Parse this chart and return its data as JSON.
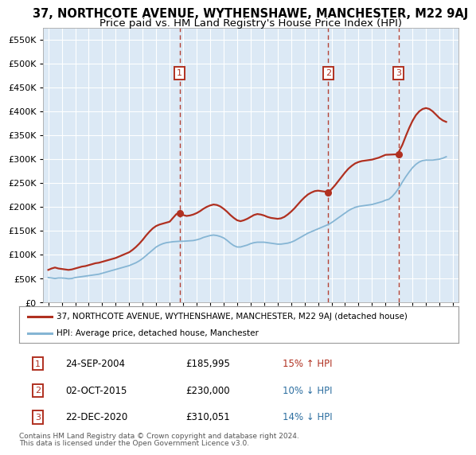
{
  "title": "37, NORTHCOTE AVENUE, WYTHENSHAWE, MANCHESTER, M22 9AJ",
  "subtitle": "Price paid vs. HM Land Registry's House Price Index (HPI)",
  "ylim": [
    0,
    575000
  ],
  "yticks": [
    0,
    50000,
    100000,
    150000,
    200000,
    250000,
    300000,
    350000,
    400000,
    450000,
    500000,
    550000
  ],
  "xlim_start": 1994.6,
  "xlim_end": 2025.4,
  "background_color": "#dce9f5",
  "grid_color": "#ffffff",
  "red_color": "#b03020",
  "blue_color": "#85b5d4",
  "hpi_line": [
    [
      1995,
      52000
    ],
    [
      1995.25,
      51000
    ],
    [
      1995.5,
      50000
    ],
    [
      1995.75,
      51000
    ],
    [
      1996,
      51000
    ],
    [
      1996.25,
      50500
    ],
    [
      1996.5,
      49500
    ],
    [
      1996.75,
      50000
    ],
    [
      1997,
      52000
    ],
    [
      1997.25,
      53000
    ],
    [
      1997.5,
      54000
    ],
    [
      1997.75,
      55000
    ],
    [
      1998,
      56000
    ],
    [
      1998.25,
      57000
    ],
    [
      1998.5,
      58000
    ],
    [
      1998.75,
      59000
    ],
    [
      1999,
      61000
    ],
    [
      1999.25,
      63000
    ],
    [
      1999.5,
      65000
    ],
    [
      1999.75,
      67000
    ],
    [
      2000,
      69000
    ],
    [
      2000.25,
      71000
    ],
    [
      2000.5,
      73000
    ],
    [
      2000.75,
      75000
    ],
    [
      2001,
      77000
    ],
    [
      2001.25,
      80000
    ],
    [
      2001.5,
      83000
    ],
    [
      2001.75,
      87000
    ],
    [
      2002,
      92000
    ],
    [
      2002.25,
      98000
    ],
    [
      2002.5,
      104000
    ],
    [
      2002.75,
      110000
    ],
    [
      2003,
      116000
    ],
    [
      2003.25,
      120000
    ],
    [
      2003.5,
      123000
    ],
    [
      2003.75,
      125000
    ],
    [
      2004,
      126000
    ],
    [
      2004.25,
      127000
    ],
    [
      2004.5,
      127500
    ],
    [
      2004.75,
      128000
    ],
    [
      2005,
      128000
    ],
    [
      2005.25,
      128500
    ],
    [
      2005.5,
      129000
    ],
    [
      2005.75,
      129500
    ],
    [
      2006,
      131000
    ],
    [
      2006.25,
      133000
    ],
    [
      2006.5,
      136000
    ],
    [
      2006.75,
      138000
    ],
    [
      2007,
      140000
    ],
    [
      2007.25,
      141000
    ],
    [
      2007.5,
      140000
    ],
    [
      2007.75,
      138000
    ],
    [
      2008,
      135000
    ],
    [
      2008.25,
      130000
    ],
    [
      2008.5,
      124000
    ],
    [
      2008.75,
      119000
    ],
    [
      2009,
      116000
    ],
    [
      2009.25,
      116000
    ],
    [
      2009.5,
      118000
    ],
    [
      2009.75,
      120000
    ],
    [
      2010,
      123000
    ],
    [
      2010.25,
      125000
    ],
    [
      2010.5,
      126000
    ],
    [
      2010.75,
      126000
    ],
    [
      2011,
      126000
    ],
    [
      2011.25,
      125000
    ],
    [
      2011.5,
      124000
    ],
    [
      2011.75,
      123000
    ],
    [
      2012,
      122000
    ],
    [
      2012.25,
      122000
    ],
    [
      2012.5,
      123000
    ],
    [
      2012.75,
      124000
    ],
    [
      2013,
      126000
    ],
    [
      2013.25,
      129000
    ],
    [
      2013.5,
      133000
    ],
    [
      2013.75,
      137000
    ],
    [
      2014,
      141000
    ],
    [
      2014.25,
      145000
    ],
    [
      2014.5,
      148000
    ],
    [
      2014.75,
      151000
    ],
    [
      2015,
      154000
    ],
    [
      2015.25,
      157000
    ],
    [
      2015.5,
      160000
    ],
    [
      2015.75,
      163000
    ],
    [
      2016,
      167000
    ],
    [
      2016.25,
      172000
    ],
    [
      2016.5,
      177000
    ],
    [
      2016.75,
      182000
    ],
    [
      2017,
      187000
    ],
    [
      2017.25,
      192000
    ],
    [
      2017.5,
      196000
    ],
    [
      2017.75,
      199000
    ],
    [
      2018,
      201000
    ],
    [
      2018.25,
      202000
    ],
    [
      2018.5,
      203000
    ],
    [
      2018.75,
      204000
    ],
    [
      2019,
      205000
    ],
    [
      2019.25,
      207000
    ],
    [
      2019.5,
      209000
    ],
    [
      2019.75,
      211000
    ],
    [
      2020,
      214000
    ],
    [
      2020.25,
      216000
    ],
    [
      2020.5,
      222000
    ],
    [
      2020.75,
      230000
    ],
    [
      2021,
      240000
    ],
    [
      2021.25,
      252000
    ],
    [
      2021.5,
      263000
    ],
    [
      2021.75,
      273000
    ],
    [
      2022,
      282000
    ],
    [
      2022.25,
      289000
    ],
    [
      2022.5,
      294000
    ],
    [
      2022.75,
      297000
    ],
    [
      2023,
      298000
    ],
    [
      2023.25,
      298000
    ],
    [
      2023.5,
      298000
    ],
    [
      2023.75,
      299000
    ],
    [
      2024,
      300000
    ],
    [
      2024.25,
      302000
    ],
    [
      2024.5,
      305000
    ]
  ],
  "property_line": [
    [
      1995,
      68000
    ],
    [
      1995.25,
      71000
    ],
    [
      1995.5,
      73000
    ],
    [
      1995.75,
      71000
    ],
    [
      1996,
      70000
    ],
    [
      1996.25,
      69000
    ],
    [
      1996.5,
      68000
    ],
    [
      1996.75,
      69000
    ],
    [
      1997,
      71000
    ],
    [
      1997.25,
      73000
    ],
    [
      1997.5,
      75000
    ],
    [
      1997.75,
      76000
    ],
    [
      1998,
      78000
    ],
    [
      1998.25,
      80000
    ],
    [
      1998.5,
      82000
    ],
    [
      1998.75,
      83000
    ],
    [
      1999,
      85000
    ],
    [
      1999.25,
      87000
    ],
    [
      1999.5,
      89000
    ],
    [
      1999.75,
      91000
    ],
    [
      2000,
      93000
    ],
    [
      2000.25,
      96000
    ],
    [
      2000.5,
      99000
    ],
    [
      2000.75,
      102000
    ],
    [
      2001,
      105000
    ],
    [
      2001.25,
      110000
    ],
    [
      2001.5,
      116000
    ],
    [
      2001.75,
      123000
    ],
    [
      2002,
      131000
    ],
    [
      2002.25,
      140000
    ],
    [
      2002.5,
      148000
    ],
    [
      2002.75,
      155000
    ],
    [
      2003,
      160000
    ],
    [
      2003.25,
      163000
    ],
    [
      2003.5,
      165000
    ],
    [
      2003.75,
      167000
    ],
    [
      2004,
      169000
    ],
    [
      2004.5,
      185000
    ],
    [
      2004.73,
      185995
    ],
    [
      2005,
      183000
    ],
    [
      2005.25,
      181000
    ],
    [
      2005.5,
      182000
    ],
    [
      2005.75,
      184000
    ],
    [
      2006,
      187000
    ],
    [
      2006.25,
      191000
    ],
    [
      2006.5,
      196000
    ],
    [
      2006.75,
      200000
    ],
    [
      2007,
      203000
    ],
    [
      2007.25,
      205000
    ],
    [
      2007.5,
      204000
    ],
    [
      2007.75,
      201000
    ],
    [
      2008,
      196000
    ],
    [
      2008.25,
      190000
    ],
    [
      2008.5,
      183000
    ],
    [
      2008.75,
      177000
    ],
    [
      2009,
      172000
    ],
    [
      2009.25,
      170000
    ],
    [
      2009.5,
      172000
    ],
    [
      2009.75,
      175000
    ],
    [
      2010,
      179000
    ],
    [
      2010.25,
      183000
    ],
    [
      2010.5,
      185000
    ],
    [
      2010.75,
      184000
    ],
    [
      2011,
      182000
    ],
    [
      2011.25,
      179000
    ],
    [
      2011.5,
      177000
    ],
    [
      2011.75,
      176000
    ],
    [
      2012,
      175000
    ],
    [
      2012.25,
      176000
    ],
    [
      2012.5,
      179000
    ],
    [
      2012.75,
      184000
    ],
    [
      2013,
      190000
    ],
    [
      2013.25,
      197000
    ],
    [
      2013.5,
      205000
    ],
    [
      2013.75,
      213000
    ],
    [
      2014,
      220000
    ],
    [
      2014.25,
      226000
    ],
    [
      2014.5,
      230000
    ],
    [
      2014.75,
      233000
    ],
    [
      2015,
      234000
    ],
    [
      2015.5,
      232000
    ],
    [
      2015.75,
      230000
    ],
    [
      2016,
      237000
    ],
    [
      2016.25,
      245000
    ],
    [
      2016.5,
      254000
    ],
    [
      2016.75,
      263000
    ],
    [
      2017,
      272000
    ],
    [
      2017.25,
      280000
    ],
    [
      2017.5,
      286000
    ],
    [
      2017.75,
      291000
    ],
    [
      2018,
      294000
    ],
    [
      2018.25,
      296000
    ],
    [
      2018.5,
      297000
    ],
    [
      2018.75,
      298000
    ],
    [
      2019,
      299000
    ],
    [
      2019.25,
      301000
    ],
    [
      2019.5,
      303000
    ],
    [
      2019.75,
      306000
    ],
    [
      2020,
      309000
    ],
    [
      2020.75,
      310000
    ],
    [
      2020.97,
      310051
    ],
    [
      2021,
      316000
    ],
    [
      2021.25,
      330000
    ],
    [
      2021.5,
      348000
    ],
    [
      2021.75,
      365000
    ],
    [
      2022,
      380000
    ],
    [
      2022.25,
      392000
    ],
    [
      2022.5,
      400000
    ],
    [
      2022.75,
      405000
    ],
    [
      2023,
      407000
    ],
    [
      2023.25,
      405000
    ],
    [
      2023.5,
      400000
    ],
    [
      2023.75,
      393000
    ],
    [
      2024,
      386000
    ],
    [
      2024.25,
      381000
    ],
    [
      2024.5,
      378000
    ]
  ],
  "sales": [
    {
      "num": 1,
      "year": 2004.73,
      "price": 185995,
      "date": "24-SEP-2004",
      "price_str": "£185,995",
      "pct": "15%",
      "dir": "↑",
      "up": true
    },
    {
      "num": 2,
      "year": 2015.75,
      "price": 230000,
      "date": "02-OCT-2015",
      "price_str": "£230,000",
      "pct": "10%",
      "dir": "↓",
      "up": false
    },
    {
      "num": 3,
      "year": 2020.97,
      "price": 310051,
      "date": "22-DEC-2020",
      "price_str": "£310,051",
      "pct": "14%",
      "dir": "↓",
      "up": false
    }
  ],
  "legend_line1": "37, NORTHCOTE AVENUE, WYTHENSHAWE, MANCHESTER, M22 9AJ (detached house)",
  "legend_line2": "HPI: Average price, detached house, Manchester",
  "footnote_line1": "Contains HM Land Registry data © Crown copyright and database right 2024.",
  "footnote_line2": "This data is licensed under the Open Government Licence v3.0.",
  "title_fontsize": 10.5,
  "subtitle_fontsize": 9.5,
  "tick_fontsize": 7.5,
  "ytick_fontsize": 8
}
